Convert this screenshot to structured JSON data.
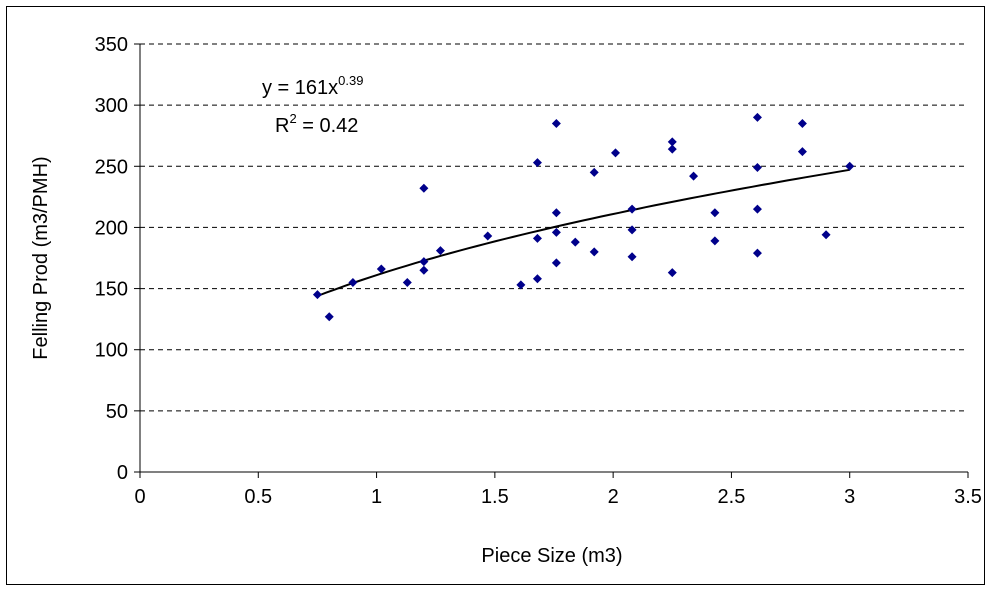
{
  "chart_data": {
    "type": "scatter",
    "title": "",
    "xlabel": "Piece Size (m3)",
    "ylabel": "Felling Prod (m3/PMH)",
    "xlim": [
      0,
      3.5
    ],
    "ylim": [
      0,
      350
    ],
    "x_ticks": [
      "0",
      "0.5",
      "1",
      "1.5",
      "2",
      "2.5",
      "3",
      "3.5"
    ],
    "y_ticks": [
      "0",
      "50",
      "100",
      "150",
      "200",
      "250",
      "300",
      "350"
    ],
    "grid": {
      "horizontal_dashed": true,
      "vertical": false
    },
    "marker_color": "#00008B",
    "trendline_color": "#000000",
    "trendline": {
      "type": "power",
      "coefficient": 161,
      "exponent": 0.39,
      "x_range": [
        0.75,
        3.0
      ]
    },
    "equation": {
      "prefix": "y = 161x",
      "exponent": "0.39"
    },
    "r_squared": {
      "prefix": "R",
      "sup": "2",
      "suffix": " = 0.42"
    },
    "points": [
      {
        "x": 0.75,
        "y": 145
      },
      {
        "x": 0.8,
        "y": 127
      },
      {
        "x": 0.9,
        "y": 155
      },
      {
        "x": 1.02,
        "y": 166
      },
      {
        "x": 1.13,
        "y": 155
      },
      {
        "x": 1.2,
        "y": 232
      },
      {
        "x": 1.2,
        "y": 172
      },
      {
        "x": 1.2,
        "y": 165
      },
      {
        "x": 1.27,
        "y": 181
      },
      {
        "x": 1.47,
        "y": 193
      },
      {
        "x": 1.61,
        "y": 153
      },
      {
        "x": 1.68,
        "y": 253
      },
      {
        "x": 1.68,
        "y": 191
      },
      {
        "x": 1.68,
        "y": 158
      },
      {
        "x": 1.76,
        "y": 285
      },
      {
        "x": 1.76,
        "y": 212
      },
      {
        "x": 1.76,
        "y": 196
      },
      {
        "x": 1.76,
        "y": 171
      },
      {
        "x": 1.84,
        "y": 188
      },
      {
        "x": 1.92,
        "y": 245
      },
      {
        "x": 1.92,
        "y": 180
      },
      {
        "x": 2.01,
        "y": 261
      },
      {
        "x": 2.08,
        "y": 215
      },
      {
        "x": 2.08,
        "y": 198
      },
      {
        "x": 2.08,
        "y": 176
      },
      {
        "x": 2.25,
        "y": 270
      },
      {
        "x": 2.25,
        "y": 264
      },
      {
        "x": 2.25,
        "y": 163
      },
      {
        "x": 2.34,
        "y": 242
      },
      {
        "x": 2.43,
        "y": 212
      },
      {
        "x": 2.43,
        "y": 189
      },
      {
        "x": 2.61,
        "y": 290
      },
      {
        "x": 2.61,
        "y": 249
      },
      {
        "x": 2.61,
        "y": 215
      },
      {
        "x": 2.61,
        "y": 179
      },
      {
        "x": 2.8,
        "y": 285
      },
      {
        "x": 2.8,
        "y": 262
      },
      {
        "x": 2.9,
        "y": 194
      },
      {
        "x": 3.0,
        "y": 250
      }
    ]
  }
}
